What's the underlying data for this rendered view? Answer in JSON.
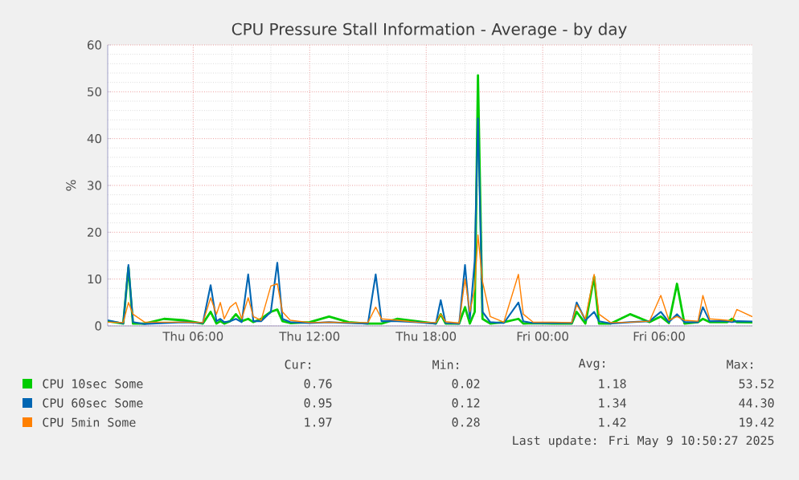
{
  "chart_data": {
    "type": "line",
    "title": "CPU Pressure Stall Information - Average - by day",
    "ylabel": "%",
    "x": [
      "2025-05-08T01:36",
      "2025-05-08T02:24",
      "2025-05-08T02:40",
      "2025-05-08T02:54",
      "2025-05-08T03:30",
      "2025-05-08T04:30",
      "2025-05-08T05:30",
      "2025-05-08T06:30",
      "2025-05-08T06:54",
      "2025-05-08T07:12",
      "2025-05-08T07:24",
      "2025-05-08T07:36",
      "2025-05-08T07:54",
      "2025-05-08T08:12",
      "2025-05-08T08:30",
      "2025-05-08T08:50",
      "2025-05-08T09:06",
      "2025-05-08T09:30",
      "2025-05-08T10:00",
      "2025-05-08T10:20",
      "2025-05-08T10:36",
      "2025-05-08T11:00",
      "2025-05-08T12:00",
      "2025-05-08T13:00",
      "2025-05-08T14:00",
      "2025-05-08T15:00",
      "2025-05-08T15:24",
      "2025-05-08T15:42",
      "2025-05-08T16:30",
      "2025-05-08T17:30",
      "2025-05-08T18:30",
      "2025-05-08T18:45",
      "2025-05-08T19:00",
      "2025-05-08T19:42",
      "2025-05-08T20:00",
      "2025-05-08T20:15",
      "2025-05-08T20:30",
      "2025-05-08T20:40",
      "2025-05-08T20:54",
      "2025-05-08T21:18",
      "2025-05-08T22:00",
      "2025-05-08T22:45",
      "2025-05-08T23:00",
      "2025-05-08T23:30",
      "2025-05-09T00:30",
      "2025-05-09T01:30",
      "2025-05-09T01:45",
      "2025-05-09T02:12",
      "2025-05-09T02:39",
      "2025-05-09T02:54",
      "2025-05-09T03:30",
      "2025-05-09T04:30",
      "2025-05-09T05:30",
      "2025-05-09T06:05",
      "2025-05-09T06:30",
      "2025-05-09T06:55",
      "2025-05-09T07:18",
      "2025-05-09T08:00",
      "2025-05-09T08:15",
      "2025-05-09T08:36",
      "2025-05-09T09:30",
      "2025-05-09T09:45",
      "2025-05-09T10:00",
      "2025-05-09T10:48"
    ],
    "series": [
      {
        "name": "CPU 10sec Some",
        "color": "#00cc00",
        "values": [
          1.0,
          0.5,
          12.5,
          0.5,
          0.5,
          1.5,
          1.2,
          0.5,
          3,
          0.5,
          1.0,
          0.5,
          1.0,
          2.5,
          1.0,
          1.5,
          0.8,
          1.5,
          3,
          3.5,
          1.0,
          0.6,
          0.8,
          2,
          0.8,
          0.5,
          0.5,
          0.5,
          1.5,
          1.0,
          0.5,
          2.5,
          0.5,
          0.5,
          4,
          0.5,
          3,
          53.52,
          1.5,
          0.5,
          0.8,
          1.5,
          0.5,
          0.6,
          0.5,
          0.5,
          3,
          0.5,
          10.5,
          0.5,
          0.5,
          2.5,
          0.8,
          2,
          0.6,
          9,
          0.5,
          0.8,
          1.5,
          0.8,
          0.8,
          1.5,
          0.8,
          0.76
        ]
      },
      {
        "name": "CPU 60sec Some",
        "color": "#0066b3",
        "values": [
          1.2,
          0.5,
          13,
          0.8,
          0.4,
          0.6,
          0.8,
          0.6,
          8.7,
          1.0,
          1.5,
          0.8,
          1.0,
          1.5,
          0.8,
          11,
          1.0,
          1.0,
          3,
          13.5,
          1.5,
          0.8,
          0.6,
          0.8,
          0.6,
          0.5,
          11,
          1.0,
          1.0,
          0.8,
          0.5,
          5.5,
          0.6,
          0.5,
          13,
          1.5,
          14,
          44.3,
          3,
          0.8,
          0.6,
          5,
          1.0,
          0.6,
          0.6,
          0.6,
          5,
          1.2,
          3,
          1.0,
          0.5,
          0.8,
          1.0,
          3,
          0.8,
          2.5,
          0.8,
          0.8,
          4,
          1.0,
          1.0,
          0.8,
          1.0,
          0.95
        ]
      },
      {
        "name": "CPU 5min Some",
        "color": "#ff8000",
        "values": [
          0.8,
          0.7,
          5,
          2.5,
          0.8,
          0.8,
          0.8,
          0.7,
          6,
          2.5,
          5,
          1.5,
          4,
          5,
          1.5,
          6,
          2,
          1.2,
          8.5,
          9,
          3,
          1.2,
          0.7,
          0.8,
          0.7,
          0.7,
          4,
          1.5,
          1.2,
          0.8,
          0.7,
          2.5,
          0.9,
          0.6,
          10,
          3,
          8,
          19.42,
          9.5,
          2,
          0.8,
          11,
          2.5,
          0.8,
          0.8,
          0.7,
          4.5,
          1.5,
          11,
          2.5,
          0.7,
          0.8,
          1.0,
          6.5,
          1.2,
          2,
          1.2,
          1.0,
          6.5,
          1.5,
          1.2,
          1.0,
          3.5,
          1.97
        ]
      }
    ],
    "xlim": [
      "2025-05-08T01:36",
      "2025-05-09T10:48"
    ],
    "xticks": [
      {
        "value": "2025-05-08T06:00",
        "label": "Thu 06:00"
      },
      {
        "value": "2025-05-08T12:00",
        "label": "Thu 12:00"
      },
      {
        "value": "2025-05-08T18:00",
        "label": "Thu 18:00"
      },
      {
        "value": "2025-05-09T00:00",
        "label": "Fri 00:00"
      },
      {
        "value": "2025-05-09T06:00",
        "label": "Fri 06:00"
      }
    ],
    "ylim": [
      0,
      60
    ],
    "yticks": [
      0,
      10,
      20,
      30,
      40,
      50,
      60
    ],
    "grid": true,
    "legend": "bottom",
    "annotations": [
      "Cur:",
      "Min:",
      "Avg:",
      "Max:",
      "0.76",
      "0.02",
      "1.18",
      "53.52",
      "0.95",
      "0.12",
      "1.34",
      "44.30",
      "1.97",
      "0.28",
      "1.42",
      "19.42",
      "Last update: Fri May  9 10:50:27 2025"
    ]
  }
}
